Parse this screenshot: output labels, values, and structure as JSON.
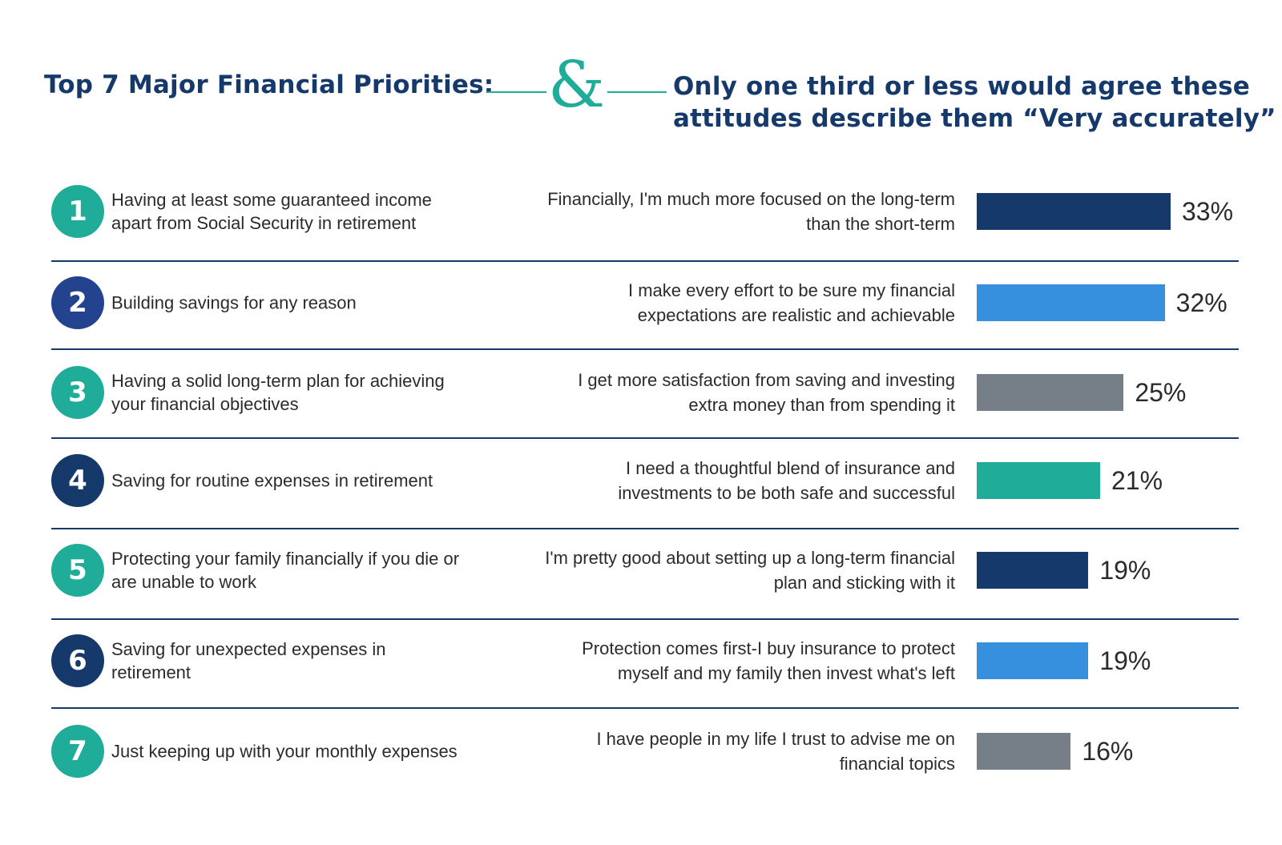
{
  "header": {
    "left_title": "Top 7 Major Financial Priorities:",
    "ampersand": "&",
    "right_title_line1": "Only one third or less would agree these",
    "right_title_line2": "attitudes describe them “Very accurately”"
  },
  "priorities": [
    {
      "rank": "1",
      "text": "Having at least some guaranteed income apart from Social Security in retirement"
    },
    {
      "rank": "2",
      "text": "Building savings for any reason"
    },
    {
      "rank": "3",
      "text": "Having a solid long-term plan for achieving your financial objectives"
    },
    {
      "rank": "4",
      "text": "Saving for routine expenses in retirement"
    },
    {
      "rank": "5",
      "text": "Protecting your family financially if you die or are unable to work"
    },
    {
      "rank": "6",
      "text": "Saving for unexpected expenses in retirement"
    },
    {
      "rank": "7",
      "text": "Just keeping up with your monthly expenses"
    }
  ],
  "colors": {
    "navy": "#15396b",
    "blue": "#3790dd",
    "gray": "#767f87",
    "teal": "#1fac99",
    "circle_teal": "#1fac99",
    "circle_indigo": "#24438e",
    "circle_navy": "#15396b"
  },
  "circle_colors": [
    "circle_teal",
    "circle_indigo",
    "circle_teal",
    "circle_navy",
    "circle_teal",
    "circle_navy",
    "circle_teal"
  ],
  "chart_data": {
    "type": "bar",
    "orientation": "horizontal",
    "categories": [
      "Financially, I'm much more focused on the long-term than the short-term",
      "I make every effort to be sure my financial expectations are realistic and achievable",
      "I get more satisfaction from saving and investing extra money than from spending it",
      "I need a thoughtful blend of insurance and investments to be both safe and successful",
      "I'm pretty good about setting up a long-term financial plan and sticking with it",
      "Protection comes first-I buy insurance to protect myself and my family then invest what's left",
      "I have people in my life I trust to advise me on financial topics"
    ],
    "values": [
      33,
      32,
      25,
      21,
      19,
      19,
      16
    ],
    "labels": [
      "33%",
      "32%",
      "25%",
      "21%",
      "19%",
      "19%",
      "16%"
    ],
    "bar_colors": [
      "navy",
      "blue",
      "gray",
      "teal",
      "navy",
      "blue",
      "gray"
    ],
    "grid": false
  }
}
